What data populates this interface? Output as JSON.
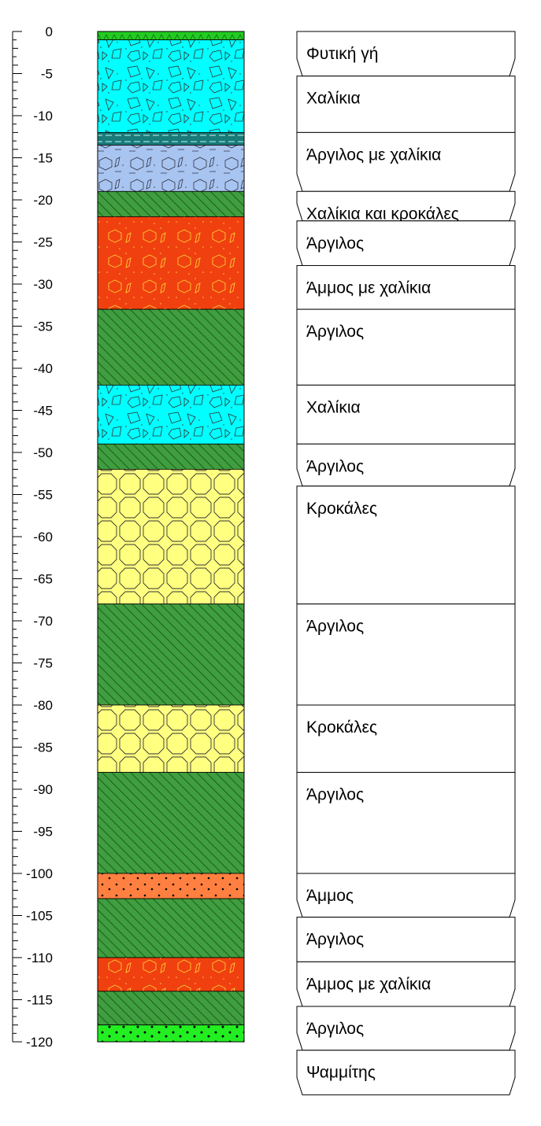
{
  "depth_axis": {
    "min": 0,
    "max": -120,
    "major_step": 5,
    "minor_step": 1,
    "tick_labels": [
      "0",
      "-5",
      "-10",
      "-15",
      "-20",
      "-25",
      "-30",
      "-35",
      "-40",
      "-45",
      "-50",
      "-55",
      "-60",
      "-65",
      "-70",
      "-75",
      "-80",
      "-85",
      "-90",
      "-95",
      "-100",
      "-105",
      "-110",
      "-115",
      "-120"
    ]
  },
  "lithology": [
    {
      "top": 0,
      "bottom": -1,
      "pattern": "grass",
      "color": "#22cc22"
    },
    {
      "top": -1,
      "bottom": -12,
      "pattern": "gravel",
      "color": "#00ffff"
    },
    {
      "top": -12,
      "bottom": -13.5,
      "pattern": "dashes",
      "color": "#1a7a7a"
    },
    {
      "top": -13.5,
      "bottom": -19,
      "pattern": "clay-gravel",
      "color": "#a8c4f0"
    },
    {
      "top": -19,
      "bottom": -22,
      "pattern": "clay",
      "color": "#3f9e3f"
    },
    {
      "top": -22,
      "bottom": -33,
      "pattern": "sand-gravel",
      "color": "#f04010"
    },
    {
      "top": -33,
      "bottom": -42,
      "pattern": "clay",
      "color": "#3f9e3f"
    },
    {
      "top": -42,
      "bottom": -49,
      "pattern": "gravel",
      "color": "#00ffff"
    },
    {
      "top": -49,
      "bottom": -52,
      "pattern": "clay",
      "color": "#3f9e3f"
    },
    {
      "top": -52,
      "bottom": -68,
      "pattern": "boulders",
      "color": "#ffff80"
    },
    {
      "top": -68,
      "bottom": -80,
      "pattern": "clay",
      "color": "#3f9e3f"
    },
    {
      "top": -80,
      "bottom": -88,
      "pattern": "boulders",
      "color": "#ffff80"
    },
    {
      "top": -88,
      "bottom": -100,
      "pattern": "clay",
      "color": "#3f9e3f"
    },
    {
      "top": -100,
      "bottom": -103,
      "pattern": "sand",
      "color": "#ff8040"
    },
    {
      "top": -103,
      "bottom": -110,
      "pattern": "clay",
      "color": "#3f9e3f"
    },
    {
      "top": -110,
      "bottom": -114,
      "pattern": "sand-gravel",
      "color": "#f04010"
    },
    {
      "top": -114,
      "bottom": -118,
      "pattern": "clay",
      "color": "#3f9e3f"
    },
    {
      "top": -118,
      "bottom": -120,
      "pattern": "sandstone",
      "color": "#22ee22"
    }
  ],
  "descriptions": [
    {
      "label": "Φυτική γή",
      "top": 0,
      "bottom": -5.3,
      "shape": "funnel"
    },
    {
      "label": "Χαλίκια",
      "top": -5.3,
      "bottom": -12,
      "shape": "rect"
    },
    {
      "label": "Άργιλος με χαλίκια",
      "top": -12,
      "bottom": -19,
      "shape": "funnel"
    },
    {
      "label": "Χαλίκια και κροκάλες",
      "top": -19,
      "bottom": -22.5,
      "shape": "funnel"
    },
    {
      "label": "Άργιλος",
      "top": -22.5,
      "bottom": -27.8,
      "shape": "funnel"
    },
    {
      "label": "Άμμος με χαλίκια",
      "top": -27.8,
      "bottom": -33,
      "shape": "rect"
    },
    {
      "label": "Άργιλος",
      "top": -33,
      "bottom": -42,
      "shape": "rect"
    },
    {
      "label": "Χαλίκια",
      "top": -42,
      "bottom": -49,
      "shape": "rect"
    },
    {
      "label": "Άργιλος",
      "top": -49,
      "bottom": -54,
      "shape": "funnel"
    },
    {
      "label": "Κροκάλες",
      "top": -54,
      "bottom": -68,
      "shape": "rect"
    },
    {
      "label": "Άργιλος",
      "top": -68,
      "bottom": -80,
      "shape": "rect"
    },
    {
      "label": "Κροκάλες",
      "top": -80,
      "bottom": -88,
      "shape": "rect"
    },
    {
      "label": "Άργιλος",
      "top": -88,
      "bottom": -100,
      "shape": "rect"
    },
    {
      "label": "Άμμος",
      "top": -100,
      "bottom": -105.2,
      "shape": "funnel"
    },
    {
      "label": "Άργιλος",
      "top": -105.2,
      "bottom": -110.5,
      "shape": "rect"
    },
    {
      "label": "Άμμος με χαλίκια",
      "top": -110.5,
      "bottom": -115.8,
      "shape": "funnel"
    },
    {
      "label": "Άργιλος",
      "top": -115.8,
      "bottom": -121,
      "shape": "funnel"
    },
    {
      "label": "Ψαμμίτης",
      "top": -121,
      "bottom": -126.3,
      "shape": "funnel"
    }
  ]
}
